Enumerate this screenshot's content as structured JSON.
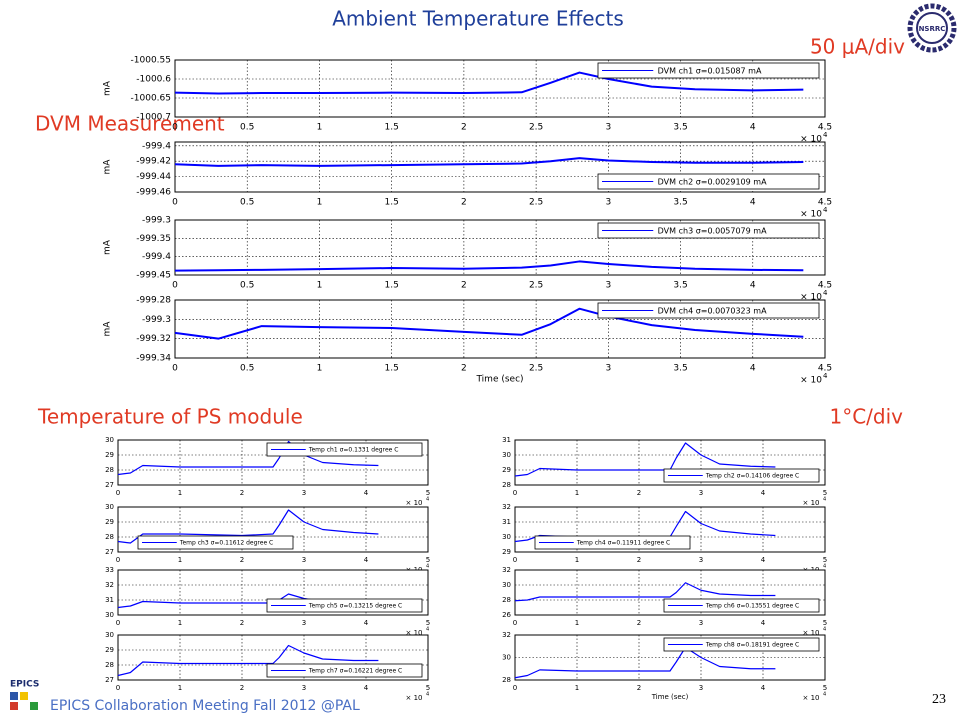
{
  "slide": {
    "title": "Ambient Temperature Effects",
    "dvm_heading": "DVM Measurement",
    "dvm_scale": "50 μA/div",
    "temp_heading": "Temperature of PS module",
    "temp_scale": "1°C/div",
    "footer": "EPICS Collaboration Meeting Fall 2012 @PAL",
    "page_number": 23,
    "logo": "NSRRC",
    "epics_logo": "EPICS"
  },
  "chart_data": [
    {
      "type": "line",
      "ylabel": "mA",
      "x_scale_label": "× 10",
      "x_scale_exponent": "4",
      "grid": true,
      "legend": "upper right",
      "x": [
        0,
        0.3,
        0.6,
        1,
        1.5,
        2,
        2.4,
        2.6,
        2.8,
        3,
        3.3,
        3.6,
        4,
        4.35
      ],
      "series": [
        {
          "name": "DVM ch1 σ=0.015087 mA",
          "color": "#0000ff",
          "values": [
            -1000.636,
            -1000.638,
            -1000.637,
            -1000.637,
            -1000.636,
            -1000.637,
            -1000.635,
            -1000.61,
            -1000.583,
            -1000.6,
            -1000.62,
            -1000.627,
            -1000.63,
            -1000.628
          ]
        }
      ],
      "xlim": [
        0,
        4.5
      ],
      "xticks": [
        0,
        0.5,
        1,
        1.5,
        2,
        2.5,
        3,
        3.5,
        4,
        4.5
      ],
      "ylim": [
        -1000.7,
        -1000.55
      ],
      "yticks": [
        -1000.55,
        -1000.6,
        -1000.65,
        -1000.7
      ]
    },
    {
      "type": "line",
      "ylabel": "mA",
      "x_scale_label": "× 10",
      "x_scale_exponent": "4",
      "grid": true,
      "legend": "lower right",
      "x": [
        0,
        0.3,
        0.6,
        1,
        1.5,
        2,
        2.4,
        2.6,
        2.8,
        3,
        3.3,
        3.6,
        4,
        4.35
      ],
      "series": [
        {
          "name": "DVM ch2 σ=0.0029109 mA",
          "color": "#0000ff",
          "values": [
            -999.424,
            -999.426,
            -999.425,
            -999.426,
            -999.425,
            -999.424,
            -999.423,
            -999.42,
            -999.416,
            -999.419,
            -999.421,
            -999.422,
            -999.422,
            -999.421
          ]
        }
      ],
      "xlim": [
        0,
        4.5
      ],
      "xticks": [
        0,
        0.5,
        1,
        1.5,
        2,
        2.5,
        3,
        3.5,
        4,
        4.5
      ],
      "ylim": [
        -999.46,
        -999.395
      ],
      "yticks": [
        -999.4,
        -999.42,
        -999.44,
        -999.46
      ]
    },
    {
      "type": "line",
      "ylabel": "mA",
      "x_scale_label": "× 10",
      "x_scale_exponent": "4",
      "grid": true,
      "legend": "upper right",
      "x": [
        0,
        0.3,
        0.6,
        1,
        1.5,
        2,
        2.4,
        2.6,
        2.8,
        3,
        3.3,
        3.6,
        4,
        4.35
      ],
      "series": [
        {
          "name": "DVM ch3 σ=0.0057079 mA",
          "color": "#0000ff",
          "values": [
            -999.438,
            -999.437,
            -999.436,
            -999.434,
            -999.431,
            -999.433,
            -999.43,
            -999.424,
            -999.413,
            -999.42,
            -999.428,
            -999.433,
            -999.436,
            -999.437
          ]
        }
      ],
      "xlim": [
        0,
        4.5
      ],
      "xticks": [
        0,
        0.5,
        1,
        1.5,
        2,
        2.5,
        3,
        3.5,
        4,
        4.5
      ],
      "ylim": [
        -999.45,
        -999.3
      ],
      "yticks": [
        -999.3,
        -999.35,
        -999.4,
        -999.45
      ]
    },
    {
      "type": "line",
      "ylabel": "mA",
      "xlabel": "Time (sec)",
      "x_scale_label": "× 10",
      "x_scale_exponent": "4",
      "grid": true,
      "legend": "upper right",
      "x": [
        0,
        0.3,
        0.6,
        1,
        1.5,
        2,
        2.4,
        2.6,
        2.8,
        3,
        3.3,
        3.6,
        4,
        4.35
      ],
      "series": [
        {
          "name": "DVM ch4 σ=0.0070323 mA",
          "color": "#0000ff",
          "values": [
            -999.314,
            -999.32,
            -999.307,
            -999.308,
            -999.309,
            -999.313,
            -999.316,
            -999.305,
            -999.289,
            -999.297,
            -999.306,
            -999.311,
            -999.315,
            -999.318
          ]
        }
      ],
      "xlim": [
        0,
        4.5
      ],
      "xticks": [
        0,
        0.5,
        1,
        1.5,
        2,
        2.5,
        3,
        3.5,
        4,
        4.5
      ],
      "ylim": [
        -999.34,
        -999.28
      ],
      "yticks": [
        -999.28,
        -999.3,
        -999.32,
        -999.34
      ]
    },
    {
      "type": "line",
      "x_scale_label": "× 10",
      "x_scale_exponent": "4",
      "grid": true,
      "legend": "upper right",
      "x": [
        0,
        0.2,
        0.4,
        1,
        2,
        2.5,
        2.6,
        2.75,
        3,
        3.3,
        3.8,
        4.2
      ],
      "series": [
        {
          "name": "Temp ch1 σ=0.1331 degree C",
          "color": "#0000ff",
          "values": [
            27.7,
            27.8,
            28.3,
            28.2,
            28.2,
            28.2,
            28.8,
            29.9,
            29.0,
            28.5,
            28.35,
            28.3
          ]
        }
      ],
      "xlim": [
        0,
        5
      ],
      "xticks": [
        0,
        1,
        2,
        3,
        4,
        5
      ],
      "ylim": [
        27,
        30
      ],
      "yticks": [
        27,
        28,
        29,
        30
      ]
    },
    {
      "type": "line",
      "x_scale_label": "× 10",
      "x_scale_exponent": "4",
      "grid": true,
      "legend": "lower right",
      "x": [
        0,
        0.2,
        0.4,
        1,
        2,
        2.5,
        2.6,
        2.75,
        3,
        3.3,
        3.8,
        4.2
      ],
      "series": [
        {
          "name": "Temp ch2 σ=0.14106 degree C",
          "color": "#0000ff",
          "values": [
            28.6,
            28.7,
            29.1,
            29.0,
            29.0,
            29.0,
            29.8,
            30.8,
            30.0,
            29.4,
            29.25,
            29.2
          ]
        }
      ],
      "xlim": [
        0,
        5
      ],
      "xticks": [
        0,
        1,
        2,
        3,
        4,
        5
      ],
      "ylim": [
        28,
        31
      ],
      "yticks": [
        28,
        29,
        30,
        31
      ]
    },
    {
      "type": "line",
      "x_scale_label": "× 10",
      "x_scale_exponent": "4",
      "grid": true,
      "legend": "lower left",
      "x": [
        0,
        0.2,
        0.4,
        1,
        2,
        2.5,
        2.6,
        2.75,
        3,
        3.3,
        3.8,
        4.2
      ],
      "series": [
        {
          "name": "Temp ch3 σ=0.11612 degree C",
          "color": "#0000ff",
          "values": [
            27.7,
            27.6,
            28.2,
            28.2,
            28.1,
            28.2,
            28.8,
            29.8,
            29.0,
            28.5,
            28.3,
            28.2
          ]
        }
      ],
      "xlim": [
        0,
        5
      ],
      "xticks": [
        0,
        1,
        2,
        3,
        4,
        5
      ],
      "ylim": [
        27,
        30
      ],
      "yticks": [
        27,
        28,
        29,
        30
      ]
    },
    {
      "type": "line",
      "x_scale_label": "× 10",
      "x_scale_exponent": "4",
      "grid": true,
      "legend": "lower left",
      "x": [
        0,
        0.2,
        0.4,
        1,
        2,
        2.5,
        2.6,
        2.75,
        3,
        3.3,
        3.8,
        4.2
      ],
      "series": [
        {
          "name": "Temp ch4 σ=0.11911 degree C",
          "color": "#0000ff",
          "values": [
            29.7,
            29.8,
            30.1,
            30.0,
            30.0,
            30.0,
            30.7,
            31.7,
            30.9,
            30.4,
            30.2,
            30.1
          ]
        }
      ],
      "xlim": [
        0,
        5
      ],
      "xticks": [
        0,
        1,
        2,
        3,
        4,
        5
      ],
      "ylim": [
        29,
        32
      ],
      "yticks": [
        29,
        30,
        31,
        32
      ]
    },
    {
      "type": "line",
      "x_scale_label": "× 10",
      "x_scale_exponent": "4",
      "grid": true,
      "legend": "lower right",
      "x": [
        0,
        0.2,
        0.4,
        1,
        2,
        2.5,
        2.6,
        2.75,
        3,
        3.3,
        3.8,
        4.2
      ],
      "series": [
        {
          "name": "Temp ch5 σ=0.13215 degree C",
          "color": "#0000ff",
          "values": [
            30.5,
            30.6,
            30.9,
            30.8,
            30.8,
            30.8,
            31.0,
            31.4,
            31.1,
            30.9,
            30.85,
            30.85
          ]
        }
      ],
      "xlim": [
        0,
        5
      ],
      "xticks": [
        0,
        1,
        2,
        3,
        4,
        5
      ],
      "ylim": [
        30,
        33
      ],
      "yticks": [
        30,
        31,
        32,
        33
      ]
    },
    {
      "type": "line",
      "x_scale_label": "× 10",
      "x_scale_exponent": "4",
      "grid": true,
      "legend": "lower right",
      "x": [
        0,
        0.2,
        0.4,
        1,
        2,
        2.5,
        2.6,
        2.75,
        3,
        3.3,
        3.8,
        4.2
      ],
      "series": [
        {
          "name": "Temp ch6 σ=0.13551 degree C",
          "color": "#0000ff",
          "values": [
            27.9,
            28.0,
            28.4,
            28.4,
            28.4,
            28.4,
            29.0,
            30.3,
            29.3,
            28.8,
            28.6,
            28.6
          ]
        }
      ],
      "xlim": [
        0,
        5
      ],
      "xticks": [
        0,
        1,
        2,
        3,
        4,
        5
      ],
      "ylim": [
        26,
        32
      ],
      "yticks": [
        26,
        28,
        30,
        32
      ]
    },
    {
      "type": "line",
      "x_scale_label": "× 10",
      "x_scale_exponent": "4",
      "grid": true,
      "legend": "lower right",
      "x": [
        0,
        0.2,
        0.4,
        1,
        2,
        2.5,
        2.6,
        2.75,
        3,
        3.3,
        3.8,
        4.2
      ],
      "series": [
        {
          "name": "Temp ch7 σ=0.16221 degree C",
          "color": "#0000ff",
          "values": [
            27.3,
            27.5,
            28.2,
            28.1,
            28.1,
            28.1,
            28.5,
            29.3,
            28.8,
            28.4,
            28.3,
            28.3
          ]
        }
      ],
      "xlim": [
        0,
        5
      ],
      "xticks": [
        0,
        1,
        2,
        3,
        4,
        5
      ],
      "ylim": [
        27,
        30
      ],
      "yticks": [
        27,
        28,
        29,
        30
      ]
    },
    {
      "type": "line",
      "xlabel": "Time (sec)",
      "x_scale_label": "× 10",
      "x_scale_exponent": "4",
      "grid": true,
      "legend": "upper right",
      "x": [
        0,
        0.2,
        0.4,
        1,
        2,
        2.5,
        2.6,
        2.75,
        3,
        3.3,
        3.8,
        4.2
      ],
      "series": [
        {
          "name": "Temp ch8 σ=0.18191 degree C",
          "color": "#0000ff",
          "values": [
            28.2,
            28.4,
            28.9,
            28.8,
            28.8,
            28.8,
            29.6,
            30.9,
            30.0,
            29.2,
            29.0,
            29.0
          ]
        }
      ],
      "xlim": [
        0,
        5
      ],
      "xticks": [
        0,
        1,
        2,
        3,
        4,
        5
      ],
      "ylim": [
        28,
        32
      ],
      "yticks": [
        28,
        30,
        32
      ]
    }
  ]
}
